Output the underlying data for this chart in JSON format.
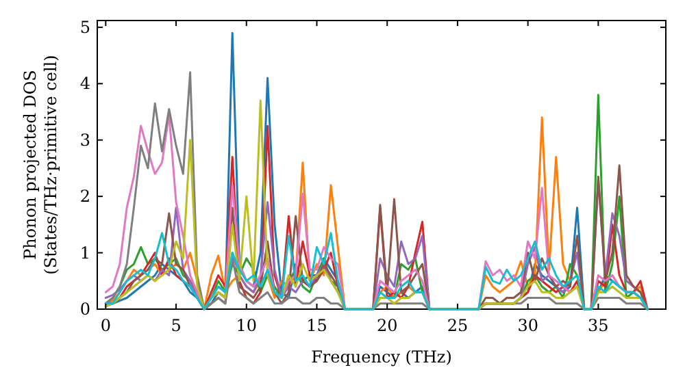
{
  "chart_data": {
    "type": "line",
    "xlabel": "Frequency (THz)",
    "ylabel": "Phonon projected DOS\n(States/THz·primitive cell)",
    "xlim": [
      -0.6,
      39.8
    ],
    "ylim": [
      0,
      5.12
    ],
    "xticks": [
      0,
      5,
      10,
      15,
      20,
      25,
      30,
      35
    ],
    "yticks": [
      0,
      1,
      2,
      3,
      4,
      5
    ],
    "grid": false,
    "marker": "none",
    "line_style": "solid",
    "x": [
      0,
      0.5,
      1,
      1.5,
      2,
      2.5,
      3,
      3.5,
      4,
      4.5,
      5,
      5.5,
      6,
      6.5,
      7,
      7.5,
      8,
      8.5,
      9,
      9.5,
      10,
      10.5,
      11,
      11.5,
      12,
      12.5,
      13,
      13.5,
      14,
      14.5,
      15,
      15.5,
      16,
      16.5,
      17,
      17.5,
      18,
      18.5,
      19,
      19.5,
      20,
      20.5,
      21,
      21.5,
      22,
      22.5,
      23,
      23.5,
      24,
      24.5,
      25,
      25.5,
      26,
      26.5,
      27,
      27.5,
      28,
      28.5,
      29,
      29.5,
      30,
      30.5,
      31,
      31.5,
      32,
      32.5,
      33,
      33.5,
      34,
      34.5,
      35,
      35.5,
      36,
      36.5,
      37,
      37.5,
      38,
      38.5
    ],
    "series": [
      {
        "color": "#1f77b4",
        "values": [
          0.1,
          0.1,
          0.15,
          0.2,
          0.3,
          0.4,
          0.5,
          0.6,
          0.8,
          0.7,
          0.6,
          0.5,
          0.3,
          0.2,
          0,
          0.1,
          0.3,
          0.2,
          4.9,
          0.8,
          0.5,
          0.4,
          1.0,
          4.1,
          1.5,
          0.3,
          0.2,
          0.8,
          0.5,
          0.6,
          0.6,
          0.9,
          0.7,
          0.5,
          0,
          0,
          0,
          0,
          0,
          0.4,
          0.3,
          0.2,
          0.3,
          0.2,
          0.3,
          0.4,
          0,
          0,
          0,
          0,
          0,
          0,
          0,
          0,
          0.1,
          0.1,
          0.1,
          0.1,
          0.1,
          0.2,
          0.3,
          0.8,
          0.6,
          0.5,
          0.4,
          0.3,
          0.4,
          1.8,
          0,
          0,
          0.3,
          0.6,
          0.5,
          0.4,
          0.3,
          0.3,
          0.2,
          0
        ]
      },
      {
        "color": "#ff7f0e",
        "values": [
          0.1,
          0.15,
          0.3,
          0.5,
          0.7,
          0.6,
          0.7,
          0.8,
          0.6,
          0.7,
          0.8,
          0.7,
          1.0,
          0.5,
          0,
          0.6,
          0.95,
          0.3,
          0.5,
          0.6,
          0.4,
          0.3,
          0.5,
          0.6,
          0.2,
          0.5,
          0.4,
          0.6,
          2.6,
          0.5,
          0.8,
          0.6,
          2.2,
          1.1,
          0,
          0,
          0,
          0,
          0,
          0.3,
          0.4,
          0.2,
          0.3,
          0.4,
          0.3,
          0.3,
          0,
          0,
          0,
          0,
          0,
          0,
          0,
          0,
          0.6,
          0.4,
          0.3,
          0.4,
          0.5,
          0.85,
          0.4,
          0.6,
          3.4,
          0.7,
          2.7,
          0.8,
          0.5,
          0.6,
          0,
          0,
          0.3,
          0.5,
          0.6,
          0.4,
          0.3,
          0.3,
          0.4,
          0
        ]
      },
      {
        "color": "#2ca02c",
        "values": [
          0.1,
          0.2,
          0.4,
          0.7,
          0.8,
          1.1,
          0.8,
          0.9,
          0.7,
          0.8,
          0.9,
          0.6,
          0.5,
          0.3,
          0,
          0.2,
          0.5,
          0.3,
          0.8,
          0.6,
          0.9,
          0.7,
          0.3,
          0.6,
          0.4,
          0.2,
          0.5,
          0.7,
          0.4,
          0.3,
          0.6,
          0.9,
          0.5,
          0.4,
          0,
          0,
          0,
          0,
          0,
          0.2,
          0.2,
          0.2,
          0.8,
          0.7,
          0.9,
          0.3,
          0,
          0,
          0,
          0,
          0,
          0,
          0,
          0,
          0.1,
          0.1,
          0.1,
          0.1,
          0.1,
          0.2,
          0.5,
          0.6,
          0.4,
          0.3,
          0.4,
          0.2,
          0.8,
          0.6,
          0,
          0,
          3.8,
          0.3,
          0.8,
          2.0,
          0.2,
          0.3,
          0.2,
          0
        ]
      },
      {
        "color": "#d62728",
        "values": [
          0.1,
          0.1,
          0.2,
          0.4,
          0.5,
          0.6,
          0.8,
          1.0,
          0.6,
          0.9,
          0.6,
          0.5,
          0.4,
          0.2,
          0,
          0.3,
          0.6,
          0.4,
          2.7,
          0.5,
          0.2,
          0.1,
          0.3,
          3.25,
          0.6,
          0.2,
          1.65,
          0.4,
          1.2,
          0.6,
          0.5,
          0.7,
          1.0,
          0.4,
          0,
          0,
          0,
          0,
          0,
          1.8,
          0.2,
          0.3,
          0.2,
          0.4,
          1.0,
          1.55,
          0,
          0,
          0,
          0,
          0,
          0,
          0,
          0,
          0.1,
          0.1,
          0.1,
          0.1,
          0.1,
          0.2,
          0.3,
          0.6,
          0.5,
          0.4,
          0.3,
          0.4,
          0.3,
          0.5,
          0,
          0,
          0.5,
          0.4,
          1.5,
          0.6,
          0.3,
          0.3,
          0.5,
          0
        ]
      },
      {
        "color": "#9467bd",
        "values": [
          0.2,
          0.25,
          0.35,
          0.5,
          0.6,
          0.5,
          0.6,
          0.5,
          0.7,
          0.6,
          1.8,
          0.7,
          0.5,
          0.2,
          0,
          0.2,
          0.3,
          0.2,
          1.0,
          0.6,
          0.4,
          0.3,
          0.6,
          1.9,
          0.7,
          0.2,
          0.4,
          0.3,
          0.5,
          0.4,
          0.6,
          0.8,
          0.5,
          0.3,
          0,
          0,
          0,
          0,
          0,
          0.9,
          0.6,
          0.4,
          1.2,
          0.8,
          0.9,
          1.3,
          0,
          0,
          0,
          0,
          0,
          0,
          0,
          0,
          0.1,
          0.1,
          0.1,
          0.1,
          0.1,
          0.2,
          0.8,
          1.1,
          0.5,
          0.6,
          0.4,
          0.3,
          0.5,
          1.0,
          0,
          0,
          2.3,
          0.6,
          1.7,
          1.3,
          0.5,
          0.4,
          0.3,
          0
        ]
      },
      {
        "color": "#8c564b",
        "values": [
          0.05,
          0.1,
          0.2,
          0.3,
          0.5,
          0.6,
          0.7,
          0.9,
          0.8,
          1.7,
          0.8,
          0.7,
          0.4,
          0.2,
          0,
          0.1,
          0.2,
          0.1,
          1.8,
          0.4,
          0.3,
          0.2,
          0.4,
          1.2,
          0.3,
          0.1,
          0.3,
          1.65,
          0.5,
          0.4,
          0.5,
          0.8,
          0.6,
          0.4,
          0,
          0,
          0,
          0,
          0,
          1.85,
          0.3,
          1.95,
          0.3,
          0.4,
          0.6,
          0.8,
          0,
          0,
          0,
          0,
          0,
          0,
          0,
          0,
          0.2,
          0.2,
          0.1,
          0.2,
          0.2,
          0.3,
          1.0,
          0.5,
          0.9,
          0.6,
          0.4,
          0.5,
          0.4,
          1.3,
          0,
          0,
          2.35,
          0.5,
          1.0,
          2.55,
          0.6,
          0.4,
          0.3,
          0
        ]
      },
      {
        "color": "#e377c2",
        "values": [
          0.3,
          0.4,
          0.8,
          1.8,
          2.35,
          3.25,
          2.8,
          2.4,
          2.6,
          3.45,
          1.9,
          1.3,
          0.6,
          0.3,
          0,
          0.2,
          0.4,
          0.3,
          2.2,
          0.8,
          0.5,
          0.4,
          0.6,
          0.9,
          0.3,
          0.2,
          0.5,
          0.6,
          2.05,
          0.7,
          0.7,
          1.1,
          0.9,
          0.8,
          0,
          0,
          0,
          0,
          0,
          0.5,
          0.4,
          0.3,
          0.5,
          0.6,
          0.7,
          0.5,
          0,
          0,
          0,
          0,
          0,
          0,
          0,
          0,
          0.85,
          0.6,
          0.7,
          0.5,
          0.6,
          0.4,
          1.2,
          0.9,
          2.15,
          0.6,
          0.5,
          0.4,
          0.3,
          0.4,
          0,
          0,
          0.6,
          0.5,
          0.6,
          0.4,
          0.3,
          0.3,
          0.2,
          0
        ]
      },
      {
        "color": "#7f7f7f",
        "values": [
          0.1,
          0.2,
          0.4,
          0.8,
          1.8,
          2.9,
          2.5,
          3.65,
          2.8,
          3.55,
          2.9,
          2.4,
          4.2,
          0.6,
          0,
          0.1,
          0.2,
          0.1,
          0.9,
          0.3,
          0.2,
          0.1,
          0.2,
          0.3,
          0.1,
          0.1,
          0.2,
          0.2,
          0.1,
          0.1,
          0.2,
          0.2,
          0.1,
          0.1,
          0,
          0,
          0,
          0,
          0,
          0.1,
          0.1,
          0.1,
          0.1,
          0.1,
          0.1,
          0.1,
          0,
          0,
          0,
          0,
          0,
          0,
          0,
          0,
          0.1,
          0.1,
          0.1,
          0.1,
          0.1,
          0.1,
          0.2,
          0.2,
          0.2,
          0.2,
          0.1,
          0.1,
          0.1,
          0.1,
          0,
          0,
          0.2,
          0.2,
          0.2,
          0.2,
          0.1,
          0.1,
          0.1,
          0
        ]
      },
      {
        "color": "#bcbd22",
        "values": [
          0.05,
          0.1,
          0.2,
          0.3,
          0.4,
          0.5,
          0.6,
          0.5,
          0.6,
          0.7,
          1.2,
          0.9,
          3.0,
          0.4,
          0,
          0.2,
          0.3,
          0.2,
          1.5,
          0.5,
          2.0,
          0.5,
          3.7,
          0.6,
          0.3,
          0.2,
          0.6,
          0.4,
          0.8,
          0.5,
          0.6,
          0.7,
          0.5,
          0.3,
          0,
          0,
          0,
          0,
          0,
          0.2,
          0.2,
          0.1,
          0.2,
          0.2,
          0.3,
          0.3,
          0,
          0,
          0,
          0,
          0,
          0,
          0,
          0,
          0.1,
          0.1,
          0.1,
          0.1,
          0.1,
          0.2,
          0.4,
          0.5,
          0.3,
          0.3,
          0.2,
          0.2,
          0.3,
          0.4,
          0,
          0,
          0.3,
          0.3,
          0.4,
          0.3,
          0.2,
          0.2,
          0.2,
          0
        ]
      },
      {
        "color": "#17becf",
        "values": [
          0.1,
          0.1,
          0.3,
          0.5,
          0.6,
          0.7,
          0.6,
          0.9,
          1.35,
          0.8,
          0.7,
          0.5,
          0.4,
          0.2,
          0,
          0.2,
          0.4,
          0.3,
          1.0,
          0.7,
          0.5,
          0.6,
          0.4,
          0.7,
          0.3,
          0.2,
          1.3,
          0.5,
          0.6,
          0.4,
          1.1,
          0.8,
          1.35,
          0.5,
          0,
          0,
          0,
          0,
          0,
          0.3,
          0.2,
          0.2,
          0.4,
          0.5,
          0.3,
          0.3,
          0,
          0,
          0,
          0,
          0,
          0,
          0,
          0,
          0.75,
          0.5,
          0.45,
          0.7,
          0.5,
          0.6,
          0.9,
          1.2,
          0.7,
          0.9,
          0.6,
          0.4,
          0.5,
          0.6,
          0,
          0,
          0.4,
          0.3,
          0.5,
          0.4,
          0.3,
          0.3,
          0.2,
          0
        ]
      }
    ]
  }
}
